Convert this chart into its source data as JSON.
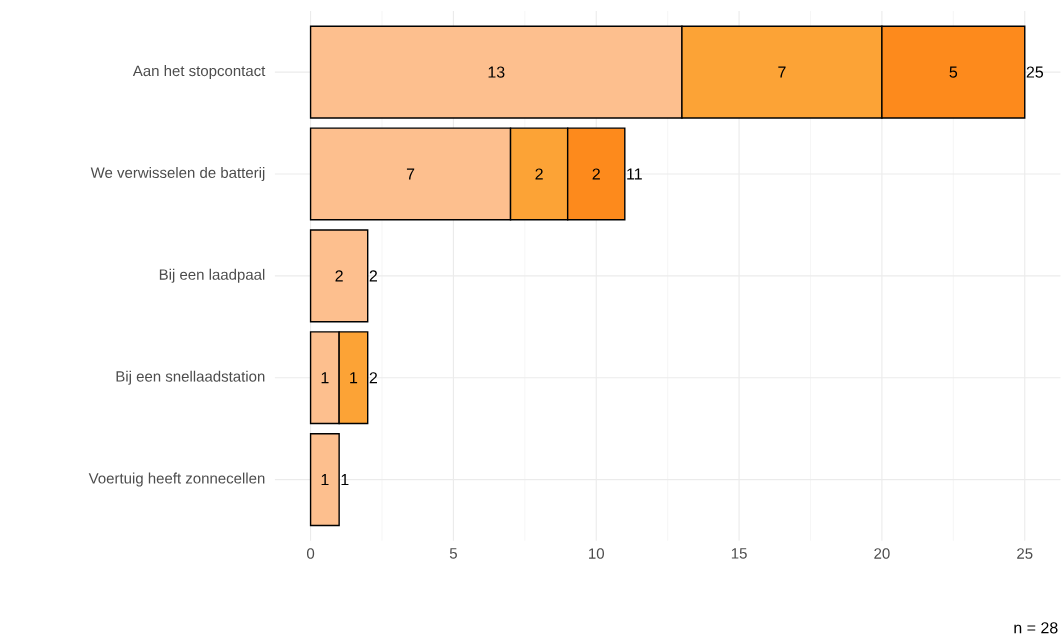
{
  "chart_data": {
    "type": "bar",
    "orientation": "horizontal",
    "stacked": true,
    "categories": [
      "Aan het stopcontact",
      "We verwisselen de batterij",
      "Bij een laadpaal",
      "Bij een snellaadstation",
      "Voertuig heeft zonnecellen"
    ],
    "series": [
      {
        "color": "#fdbf8e",
        "values": [
          13,
          7,
          2,
          1,
          1
        ]
      },
      {
        "color": "#fca336",
        "values": [
          7,
          2,
          null,
          1,
          null
        ]
      },
      {
        "color": "#fd8a1c",
        "values": [
          5,
          2,
          null,
          null,
          null
        ]
      }
    ],
    "data_labels": true,
    "totals": [
      "25",
      "11",
      "2",
      "2",
      "1"
    ],
    "xlim": [
      -1.25,
      26.25
    ],
    "xticks": [
      0,
      5,
      10,
      15,
      20,
      25
    ],
    "grid": true,
    "annotations": [
      "n = 28"
    ]
  }
}
